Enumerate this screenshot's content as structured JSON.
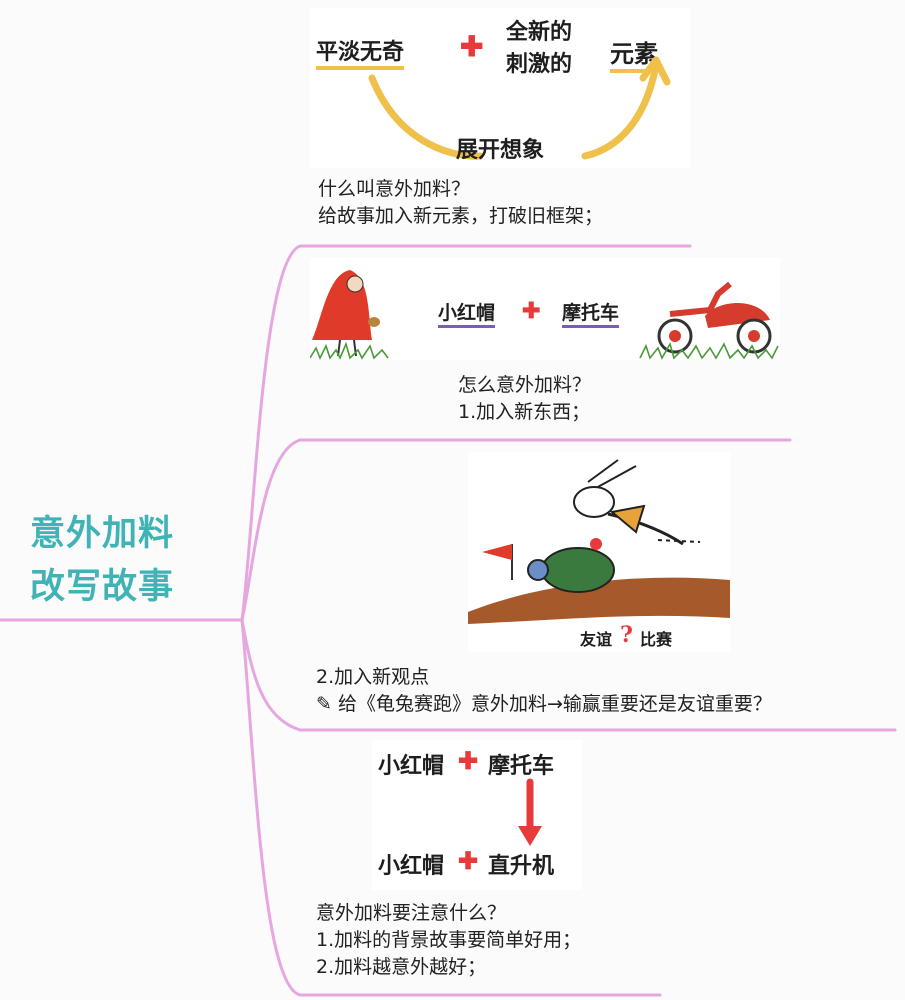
{
  "root": {
    "line1": "意外加料",
    "line2": "改写故事"
  },
  "colors": {
    "branch": "#e6a6e0",
    "root_text": "#3fb3b5",
    "plus": "#e83a3a",
    "arrow_yellow": "#f0c14a",
    "arrow_red": "#e83a3a"
  },
  "node1": {
    "sketch": {
      "left": "平淡无奇",
      "middle_line1": "全新的",
      "middle_line2": "刺激的",
      "right": "元素",
      "bottom": "展开想象"
    },
    "text": [
      "什么叫意外加料？",
      "给故事加入新元素，打破旧框架；"
    ]
  },
  "node2": {
    "sketch": {
      "left": "小红帽",
      "right": "摩托车"
    },
    "text": [
      "怎么意外加料？",
      "1.加入新东西；"
    ]
  },
  "node3": {
    "sketch": {
      "left": "友谊",
      "mark": "?",
      "right": "比赛"
    },
    "text": [
      "2.加入新观点",
      "✎ 给《龟兔赛跑》意外加料→输赢重要还是友谊重要？"
    ]
  },
  "node4": {
    "sketch": {
      "top_left": "小红帽",
      "top_right": "摩托车",
      "bottom_left": "小红帽",
      "bottom_right": "直升机"
    },
    "text": [
      "意外加料要注意什么？",
      "1.加料的背景故事要简单好用；",
      "2.加料越意外越好；"
    ]
  }
}
